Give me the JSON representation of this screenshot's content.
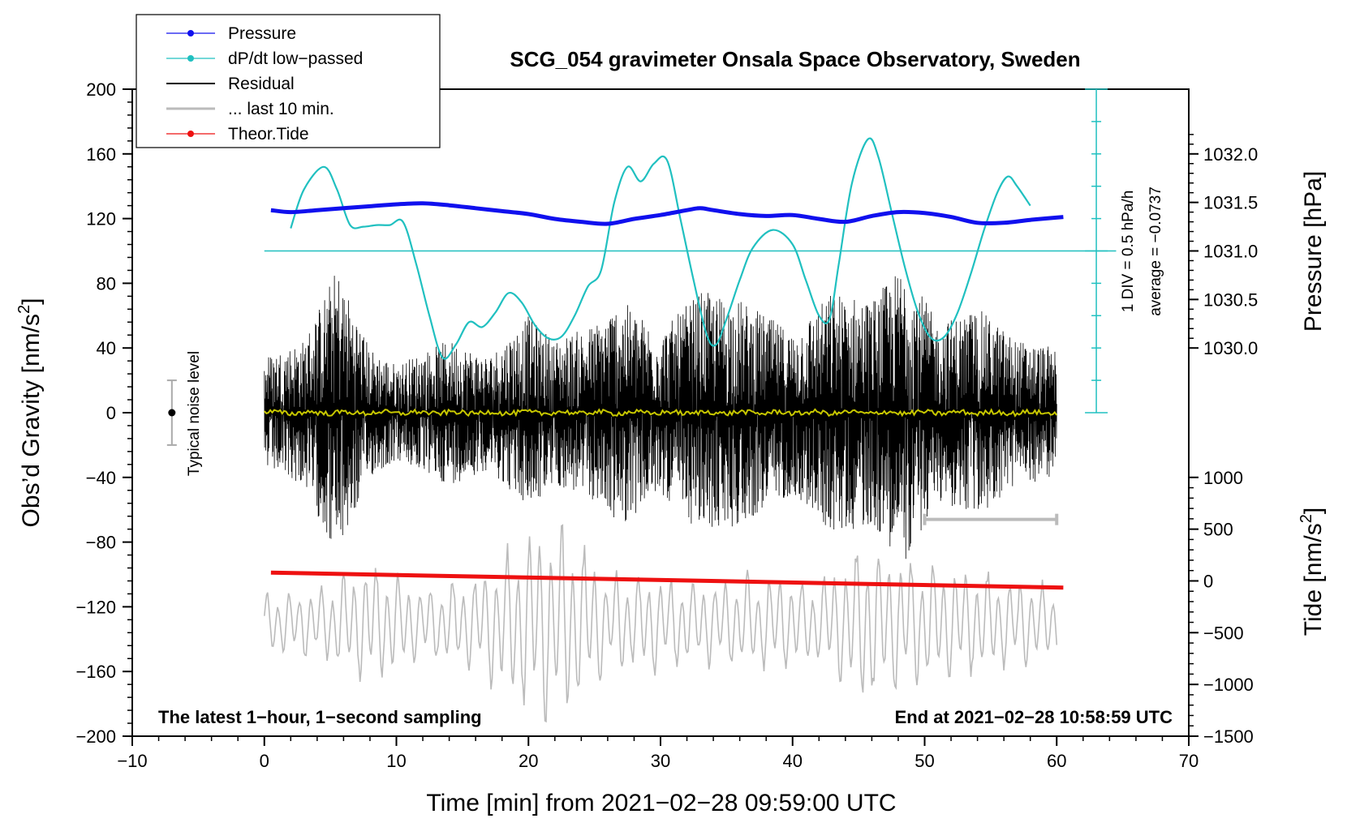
{
  "chart_data": {
    "type": "line",
    "title": "SCG_054 gravimeter Onsala Space Observatory, Sweden",
    "xlabel": "Time [min] from 2021−02−28 09:59:00 UTC",
    "ylabel_left": "Obs’d Gravity [nm/s",
    "ylabel_left_sup": "2",
    "ylabel_left_end": "]",
    "ylabel_right_pressure": "Pressure [hPa]",
    "ylabel_right_tide": "Tide [nm/s",
    "ylabel_right_tide_sup": "2",
    "ylabel_right_tide_end": "]",
    "footer_left": "The latest 1−hour, 1−second sampling",
    "footer_right": "End at 2021−02−28 10:58:59 UTC",
    "noise_label": "Typical noise level",
    "scale_div_label": "1 DIV = 0.5 hPa/h",
    "scale_avg_label": "average = −0.0737",
    "xlim": [
      -10,
      70
    ],
    "ylim_left": [
      -200,
      200
    ],
    "x_ticks": [
      "−10",
      "0",
      "10",
      "20",
      "30",
      "40",
      "50",
      "60",
      "70"
    ],
    "y_ticks_left": [
      "200",
      "160",
      "120",
      "80",
      "40",
      "0",
      "−40",
      "−80",
      "−120",
      "−160",
      "−200"
    ],
    "y_ticks_pressure": [
      "1032.0",
      "1031.5",
      "1031.0",
      "1030.5",
      "1030.0"
    ],
    "y_ticks_tide": [
      "1000",
      "500",
      "0",
      "−500",
      "−1000",
      "−1500"
    ],
    "pressure_ylim_on_left": [
      1030.0,
      1032.0
    ],
    "pressure_range_left_units": [
      40,
      160
    ],
    "tide_range": [
      -1500,
      1000
    ],
    "tide_range_left_units": [
      -200,
      -40
    ],
    "legend": [
      {
        "label": "Pressure",
        "color": "#1010ee",
        "style": "line-dot"
      },
      {
        "label": "dP/dt low−passed",
        "color": "#20c0c0",
        "style": "line-dot"
      },
      {
        "label": "Residual",
        "color": "#000000",
        "style": "line"
      },
      {
        "label": "... last 10 min.",
        "color": "#bbbbbb",
        "style": "line"
      },
      {
        "label": "Theor.Tide",
        "color": "#ee1111",
        "style": "line-dot"
      }
    ],
    "series": [
      {
        "name": "Pressure",
        "color": "#1010ee",
        "units": "hPa",
        "x": [
          0.5,
          2,
          4,
          6,
          8,
          10,
          12,
          14,
          16,
          18,
          20,
          22,
          24,
          26,
          28,
          30,
          32,
          33,
          34,
          36,
          38,
          40,
          42,
          44,
          46,
          48,
          50,
          52,
          54,
          56,
          58,
          60.5
        ],
        "values": [
          1031.42,
          1031.4,
          1031.42,
          1031.44,
          1031.46,
          1031.48,
          1031.49,
          1031.47,
          1031.44,
          1031.41,
          1031.38,
          1031.33,
          1031.3,
          1031.28,
          1031.33,
          1031.37,
          1031.42,
          1031.44,
          1031.42,
          1031.38,
          1031.36,
          1031.37,
          1031.33,
          1031.3,
          1031.36,
          1031.4,
          1031.39,
          1031.35,
          1031.29,
          1031.29,
          1031.32,
          1031.35
        ]
      },
      {
        "name": "dP/dt low−passed",
        "color": "#20c0c0",
        "units": "nm/s2 plotting units",
        "x": [
          2,
          3,
          4.5,
          5.5,
          6.5,
          7.5,
          8.5,
          9.5,
          10.5,
          11.5,
          12.5,
          13.5,
          14.5,
          15.5,
          16.5,
          17.5,
          18.5,
          19.5,
          20.5,
          21.5,
          22.5,
          23.5,
          24.5,
          25.5,
          26.5,
          27.5,
          28.5,
          29.5,
          30.5,
          31.5,
          32.5,
          33.5,
          34.2,
          35,
          36,
          37,
          38.5,
          40,
          41,
          42,
          42.8,
          43.5,
          44.5,
          45.7,
          46.5,
          47.5,
          48.5,
          49.5,
          50.5,
          51.5,
          52.5,
          53.5,
          54.5,
          55.5,
          56.3,
          57,
          58
        ],
        "values": [
          114,
          138,
          152,
          138,
          116,
          115,
          116,
          116,
          118,
          92,
          60,
          34,
          42,
          56,
          53,
          62,
          74,
          68,
          54,
          46,
          47,
          60,
          78,
          88,
          130,
          152,
          143,
          154,
          156,
          120,
          82,
          48,
          42,
          58,
          82,
          102,
          113,
          104,
          82,
          60,
          58,
          92,
          142,
          169,
          158,
          124,
          90,
          62,
          46,
          47,
          62,
          86,
          113,
          136,
          146,
          140,
          128
        ]
      },
      {
        "name": "Residual",
        "color": "#000000",
        "x_range": [
          0,
          60
        ],
        "amplitude_envelope": [
          {
            "x": 0,
            "amp": 35
          },
          {
            "x": 3,
            "amp": 45
          },
          {
            "x": 5.5,
            "amp": 90
          },
          {
            "x": 8,
            "amp": 40
          },
          {
            "x": 10,
            "amp": 30
          },
          {
            "x": 14,
            "amp": 45
          },
          {
            "x": 17,
            "amp": 35
          },
          {
            "x": 20,
            "amp": 60
          },
          {
            "x": 22,
            "amp": 45
          },
          {
            "x": 25,
            "amp": 55
          },
          {
            "x": 27,
            "amp": 70
          },
          {
            "x": 30,
            "amp": 50
          },
          {
            "x": 33,
            "amp": 75
          },
          {
            "x": 36,
            "amp": 70
          },
          {
            "x": 40,
            "amp": 50
          },
          {
            "x": 43,
            "amp": 75
          },
          {
            "x": 46,
            "amp": 70
          },
          {
            "x": 48.5,
            "amp": 93
          },
          {
            "x": 51,
            "amp": 55
          },
          {
            "x": 54,
            "amp": 65
          },
          {
            "x": 57,
            "amp": 45
          },
          {
            "x": 60,
            "amp": 40
          }
        ]
      },
      {
        "name": "Residual low−passed",
        "color": "#c8c800",
        "x_range": [
          0,
          60
        ],
        "values_near": 0
      },
      {
        "name": "... last 10 min.",
        "color": "#bbbbbb",
        "x_range": [
          0,
          60
        ],
        "center_value": -130,
        "amplitude_envelope": [
          {
            "x": 0,
            "amp": 20
          },
          {
            "x": 4,
            "amp": 25
          },
          {
            "x": 8,
            "amp": 45
          },
          {
            "x": 12,
            "amp": 25
          },
          {
            "x": 16,
            "amp": 35
          },
          {
            "x": 21,
            "amp": 70
          },
          {
            "x": 23,
            "amp": 70
          },
          {
            "x": 26,
            "amp": 35
          },
          {
            "x": 30,
            "amp": 35
          },
          {
            "x": 34,
            "amp": 30
          },
          {
            "x": 38,
            "amp": 35
          },
          {
            "x": 42,
            "amp": 30
          },
          {
            "x": 45.5,
            "amp": 60
          },
          {
            "x": 49,
            "amp": 45
          },
          {
            "x": 53,
            "amp": 40
          },
          {
            "x": 57,
            "amp": 30
          },
          {
            "x": 60,
            "amp": 28
          }
        ]
      },
      {
        "name": "Theor.Tide",
        "color": "#ee1111",
        "units": "nm/s2",
        "x": [
          0.5,
          60.5
        ],
        "values": [
          80,
          -65
        ]
      }
    ],
    "noise_bar": {
      "x": -7,
      "center": 0,
      "low": -20,
      "high": 20
    },
    "last_10_min_bar": {
      "x_start": 50,
      "x_end": 60,
      "y": -66
    }
  }
}
